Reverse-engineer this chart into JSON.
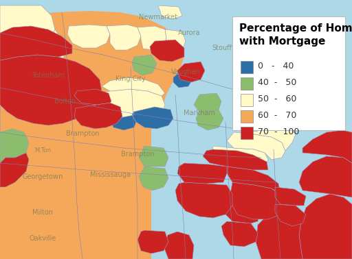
{
  "title": "Percentage of Homeowners\nwith Mortgage",
  "background_color": "#add8e8",
  "categories": [
    {
      "label": "0   -   40",
      "color": "#2E6EA6"
    },
    {
      "label": "40  -   50",
      "color": "#8CBD6E"
    },
    {
      "label": "50  -   60",
      "color": "#FFFAC8"
    },
    {
      "label": "60  -   70",
      "color": "#F5A85A"
    },
    {
      "label": "70  -  100",
      "color": "#CC2222"
    }
  ],
  "title_fontsize": 11,
  "legend_fontsize": 9,
  "figsize": [
    5.12,
    3.78
  ],
  "dpi": 100,
  "boundary_color": "#9999bb",
  "boundary_lw": 0.5
}
